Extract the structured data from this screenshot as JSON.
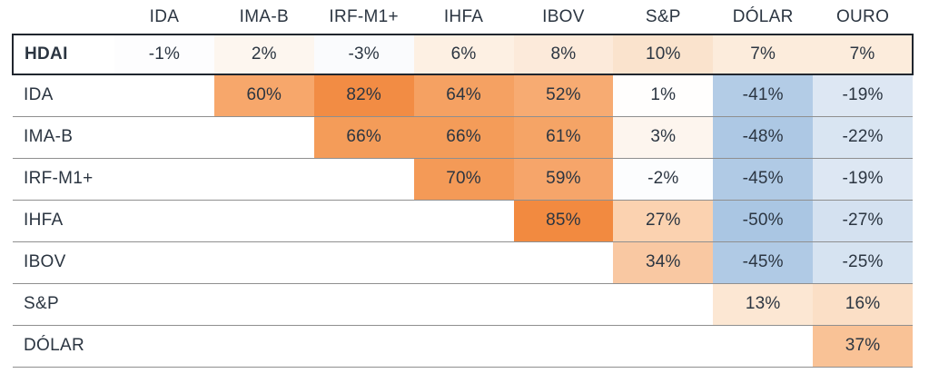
{
  "style_colors": {
    "background": "#ffffff",
    "text": "#2b3541",
    "separator_line": "#8f8f8f",
    "highlight_box_border": "#20262e",
    "positive_max": "#f28a40",
    "negative_max": "#aac6e3",
    "neutral": "#ffffff"
  },
  "chart_data": {
    "type": "heatmap",
    "title": "",
    "description": "Correlation matrix of financial indices, values in percent; orange = positive correlation, blue = negative correlation; first row (HDAI) outlined with a dark box",
    "value_suffix": "%",
    "corner_label": "",
    "columns": [
      "IDA",
      "IMA-B",
      "IRF-M1+",
      "IHFA",
      "IBOV",
      "S&P",
      "DÓLAR",
      "OURO"
    ],
    "row_labels": [
      "HDAI",
      "IDA",
      "IMA-B",
      "IRF-M1+",
      "IHFA",
      "IBOV",
      "S&P",
      "DÓLAR"
    ],
    "highlighted_row": "HDAI",
    "matrix": [
      [
        -1,
        2,
        -3,
        6,
        8,
        10,
        7,
        7
      ],
      [
        null,
        60,
        82,
        64,
        52,
        1,
        -41,
        -19
      ],
      [
        null,
        null,
        66,
        66,
        61,
        3,
        -48,
        -22
      ],
      [
        null,
        null,
        null,
        70,
        59,
        -2,
        -45,
        -19
      ],
      [
        null,
        null,
        null,
        null,
        85,
        27,
        -50,
        -27
      ],
      [
        null,
        null,
        null,
        null,
        null,
        34,
        -45,
        -25
      ],
      [
        null,
        null,
        null,
        null,
        null,
        null,
        13,
        16
      ],
      [
        null,
        null,
        null,
        null,
        null,
        null,
        null,
        37
      ]
    ],
    "cell_colors": [
      [
        "#fdfdfe",
        "#fdf6ef",
        "#fafbfd",
        "#fdf0e3",
        "#fceada",
        "#fae3cd",
        "#fcecdc",
        "#fcecdc"
      ],
      [
        null,
        "#f7a76b",
        "#f28c44",
        "#f5a162",
        "#f7ab72",
        "#fffefd",
        "#b3cce6",
        "#dde7f3"
      ],
      [
        null,
        null,
        "#f49c59",
        "#f49c59",
        "#f5a466",
        "#fdf5ee",
        "#adc8e4",
        "#d9e5f2"
      ],
      [
        null,
        null,
        null,
        "#f49a57",
        "#f6a56a",
        "#fcfdfe",
        "#b0cae5",
        "#dde7f3"
      ],
      [
        null,
        null,
        null,
        null,
        "#f28a40",
        "#fbd2b0",
        "#aac6e3",
        "#d4e1f0"
      ],
      [
        null,
        null,
        null,
        null,
        null,
        "#f9c8a2",
        "#b0cae5",
        "#d6e3f1"
      ],
      [
        null,
        null,
        null,
        null,
        null,
        null,
        "#fce7d3",
        "#fbdfc6"
      ],
      [
        null,
        null,
        null,
        null,
        null,
        null,
        null,
        "#f9c296"
      ]
    ]
  }
}
